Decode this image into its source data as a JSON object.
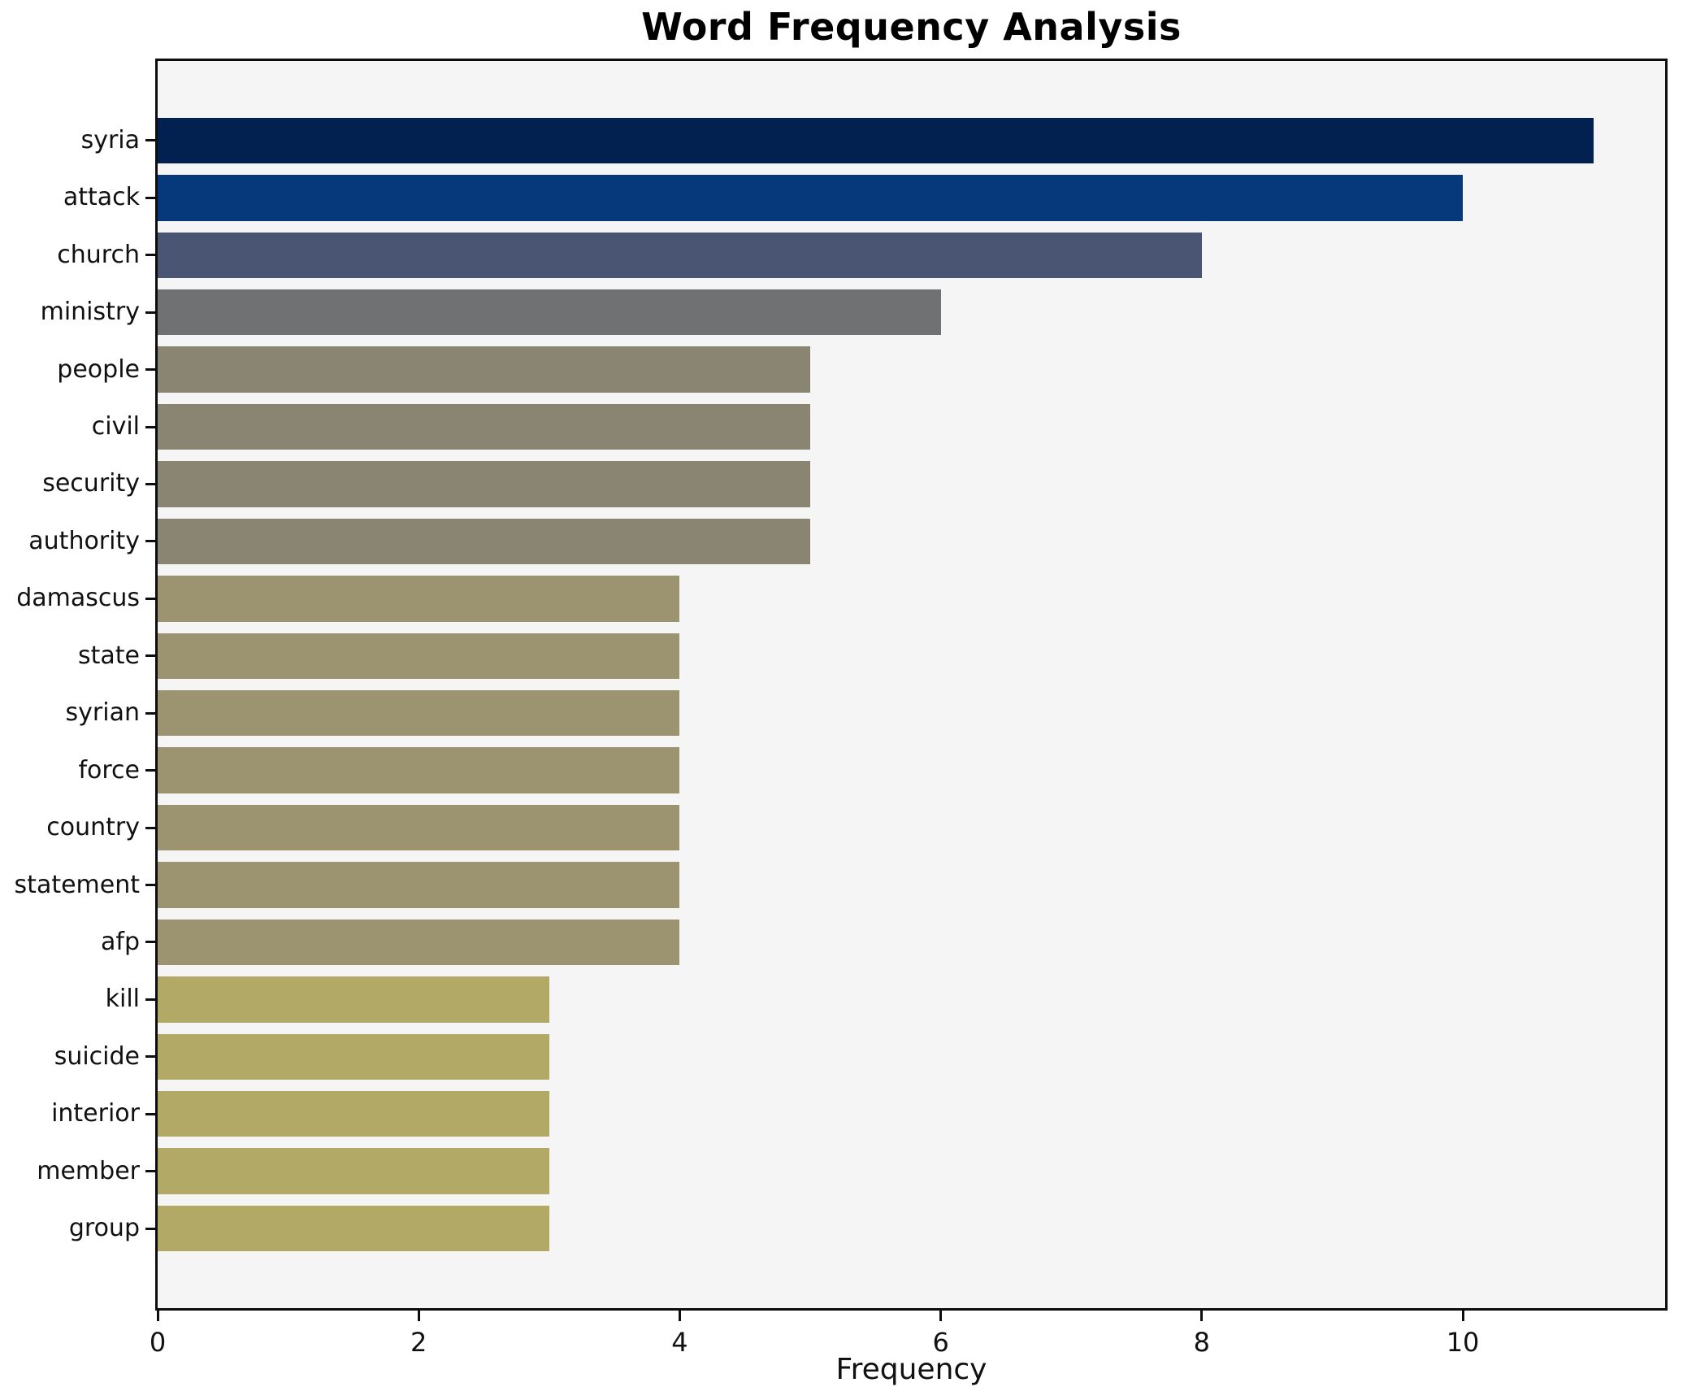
{
  "title": "Word Frequency Analysis",
  "chart_data": {
    "type": "bar",
    "orientation": "horizontal",
    "title": "Word Frequency Analysis",
    "xlabel": "Frequency",
    "ylabel": "",
    "categories": [
      "syria",
      "attack",
      "church",
      "ministry",
      "people",
      "civil",
      "security",
      "authority",
      "damascus",
      "state",
      "syrian",
      "force",
      "country",
      "statement",
      "afp",
      "kill",
      "suicide",
      "interior",
      "member",
      "group"
    ],
    "values": [
      11,
      10,
      8,
      6,
      5,
      5,
      5,
      5,
      4,
      4,
      4,
      4,
      4,
      4,
      4,
      3,
      3,
      3,
      3,
      3
    ],
    "bar_colors": [
      "#032150",
      "#05397c",
      "#4a5573",
      "#707173",
      "#898572",
      "#898572",
      "#898572",
      "#898572",
      "#9c9470",
      "#9c9470",
      "#9c9470",
      "#9c9470",
      "#9c9470",
      "#9c9470",
      "#9c9470",
      "#b3a966",
      "#b3a966",
      "#b3a966",
      "#b3a966",
      "#b3a966"
    ],
    "xlim": [
      0,
      11.55
    ],
    "xticks": [
      0,
      2,
      4,
      6,
      8,
      10
    ],
    "grid": false,
    "legend": "none",
    "plot_background": "#f5f5f6",
    "figure_background": "#ffffff",
    "colormap": "cividis-reversed"
  }
}
